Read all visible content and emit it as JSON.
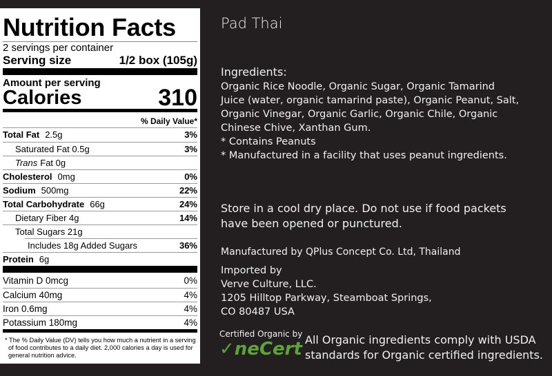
{
  "panel": {
    "title": "Nutrition Facts",
    "servings": "2 servings per container",
    "serving_size_label": "Serving size",
    "serving_size_value": "1/2 box (105g)",
    "amount_per_serving": "Amount per serving",
    "calories_label": "Calories",
    "calories_value": "310",
    "dv_header": "% Daily Value*",
    "nutrients": [
      {
        "name": "Total Fat",
        "amount": "2.5g",
        "pct": "3%"
      },
      {
        "name": "Saturated Fat 0.5g",
        "amount": "",
        "pct": "3%"
      },
      {
        "name": "Trans",
        "amount": "Fat 0g",
        "pct": ""
      },
      {
        "name": "Cholesterol",
        "amount": "0mg",
        "pct": "0%"
      },
      {
        "name": "Sodium",
        "amount": "500mg",
        "pct": "22%"
      },
      {
        "name": "Total Carbohydrate",
        "amount": "66g",
        "pct": "24%"
      },
      {
        "name": "Dietary Fiber 4g",
        "amount": "",
        "pct": "14%"
      },
      {
        "name": "Total Sugars 21g",
        "amount": "",
        "pct": ""
      },
      {
        "name": "Includes 18g Added Sugars",
        "amount": "",
        "pct": "36%"
      },
      {
        "name": "Protein",
        "amount": "6g",
        "pct": ""
      }
    ],
    "vitamins": [
      {
        "name": "Vitamin D 0mcg",
        "pct": "0%"
      },
      {
        "name": "Calcium 40mg",
        "pct": "4%"
      },
      {
        "name": "Iron 0.6mg",
        "pct": "4%"
      },
      {
        "name": "Potassium 180mg",
        "pct": "4%"
      }
    ],
    "footnote": "* The % Daily Value (DV) tells you how much a nutrient in a serving of food contributes to a daily diet. 2,000 calories a day is used for general nutrition advice."
  },
  "info": {
    "product_name": "Pad Thai",
    "ingredients_heading": "Ingredients:",
    "ingredients_lines": [
      "Organic Rice Noodle, Organic Sugar, Organic Tamarind",
      "Juice (water, organic tamarind paste), Organic Peanut, Salt,",
      "Organic Vinegar, Organic Garlic, Organic Chile, Organic",
      "Chinese Chive, Xanthan Gum.",
      "* Contains Peanuts",
      "* Manufactured in a facility that uses peanut ingredients."
    ],
    "storage_lines": [
      "Store in a cool dry place.  Do not use if food packets",
      "have been opened or punctured."
    ],
    "manufacturer": "Manufactured by QPlus Concept Co. Ltd, Thailand",
    "importer_lines": [
      "Imported by",
      "Verve Culture, LLC.",
      "1205 Hilltop Parkway, Steamboat Springs,",
      "CO 80487  USA"
    ],
    "certified_by": "Certified Organic by",
    "cert_logo": "OneCert",
    "organic_lines": [
      "All Organic ingredients comply with USDA",
      "standards for Organic certified ingredients."
    ]
  },
  "colors": {
    "background": "#231f20",
    "logo_green": "#5ea339"
  }
}
